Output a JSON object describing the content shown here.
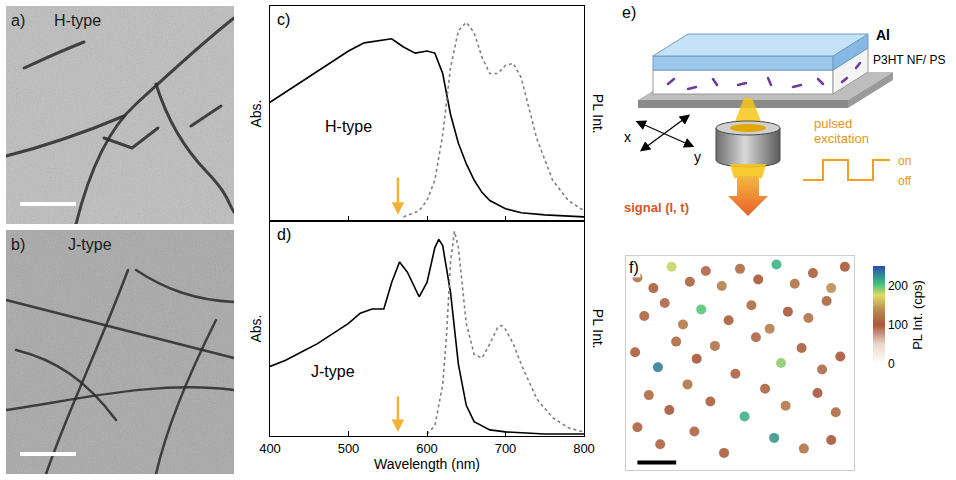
{
  "panels": {
    "a": {
      "label": "a)",
      "text": "H-type"
    },
    "b": {
      "label": "b)",
      "text": "J-type"
    },
    "e": {
      "label": "e)",
      "layer_labels": [
        "Al",
        "P3HT NF/ PS"
      ],
      "axes": [
        "x",
        "y"
      ],
      "excitation": "pulsed excitation",
      "states": [
        "on",
        "off"
      ],
      "signal": "signal (I, t)"
    }
  },
  "chart_data": [
    {
      "panel": "c)",
      "type": "line",
      "label": "H-type",
      "y_title": "Abs.",
      "y2_title": "PL Int.",
      "xlim": [
        400,
        800
      ],
      "xticks": [
        400,
        500,
        600,
        700,
        800
      ],
      "ylim": [
        0,
        1.05
      ],
      "yticks": [],
      "tick_labels": false,
      "grid": false,
      "series": [
        {
          "color": "#000000",
          "line_style": "solid",
          "x": [
            400,
            420,
            440,
            460,
            480,
            500,
            520,
            540,
            555,
            570,
            585,
            600,
            610,
            620,
            630,
            640,
            650,
            660,
            670,
            680,
            700,
            720,
            750,
            800
          ],
          "values": [
            0.58,
            0.63,
            0.68,
            0.73,
            0.78,
            0.83,
            0.87,
            0.88,
            0.89,
            0.85,
            0.82,
            0.83,
            0.82,
            0.72,
            0.52,
            0.38,
            0.28,
            0.2,
            0.14,
            0.1,
            0.06,
            0.04,
            0.03,
            0.02
          ]
        },
        {
          "color": "#808080",
          "line_style": "dot",
          "x": [
            570,
            590,
            600,
            610,
            620,
            630,
            640,
            650,
            660,
            670,
            680,
            690,
            700,
            710,
            720,
            730,
            740,
            760,
            780,
            800
          ],
          "values": [
            0.02,
            0.05,
            0.1,
            0.2,
            0.42,
            0.75,
            0.93,
            0.97,
            0.92,
            0.8,
            0.72,
            0.72,
            0.76,
            0.77,
            0.7,
            0.55,
            0.4,
            0.2,
            0.1,
            0.05
          ]
        }
      ],
      "arrow": {
        "x": 563,
        "y": [
          0.22,
          0.03
        ],
        "color": "#f2b233"
      }
    },
    {
      "panel": "d)",
      "type": "line",
      "label": "J-type",
      "x_title": "Wavelength (nm)",
      "y_title": "Abs.",
      "y2_title": "PL Int.",
      "xlim": [
        400,
        800
      ],
      "xticks": [
        400,
        500,
        600,
        700,
        800
      ],
      "ylim": [
        0,
        1.05
      ],
      "yticks": [],
      "tick_labels": "x",
      "grid": false,
      "series": [
        {
          "color": "#000000",
          "line_style": "solid",
          "x": [
            400,
            420,
            440,
            460,
            480,
            500,
            515,
            530,
            545,
            555,
            565,
            575,
            590,
            600,
            610,
            615,
            620,
            630,
            640,
            650,
            660,
            680,
            700,
            750,
            800
          ],
          "values": [
            0.34,
            0.37,
            0.41,
            0.45,
            0.5,
            0.55,
            0.6,
            0.62,
            0.62,
            0.75,
            0.85,
            0.8,
            0.68,
            0.75,
            0.92,
            0.96,
            0.93,
            0.7,
            0.35,
            0.15,
            0.07,
            0.03,
            0.02,
            0.01,
            0.01
          ]
        },
        {
          "color": "#808080",
          "line_style": "dot",
          "x": [
            600,
            610,
            620,
            625,
            630,
            635,
            640,
            645,
            650,
            660,
            670,
            680,
            690,
            695,
            700,
            710,
            720,
            740,
            760,
            780,
            800
          ],
          "values": [
            0.01,
            0.05,
            0.25,
            0.5,
            0.85,
            1.0,
            0.92,
            0.72,
            0.55,
            0.4,
            0.38,
            0.45,
            0.53,
            0.54,
            0.52,
            0.45,
            0.35,
            0.18,
            0.09,
            0.04,
            0.02
          ]
        }
      ],
      "arrow": {
        "x": 563,
        "y": [
          0.2,
          0.02
        ],
        "color": "#f2b233"
      }
    },
    {
      "panel": "f)",
      "type": "scatter",
      "marker": "circle",
      "xlim": [
        0,
        100
      ],
      "ylim": [
        0,
        100
      ],
      "xticks": [],
      "yticks": [],
      "tick_labels": false,
      "grid": false,
      "x": [
        5,
        12,
        20,
        28,
        35,
        42,
        50,
        58,
        66,
        74,
        82,
        90,
        96,
        8,
        17,
        25,
        33,
        45,
        55,
        63,
        71,
        80,
        88,
        4,
        14,
        22,
        31,
        39,
        48,
        57,
        68,
        77,
        86,
        94,
        10,
        19,
        27,
        37,
        52,
        61,
        70,
        84,
        92,
        15,
        43,
        65,
        30,
        78,
        90,
        5
      ],
      "y": [
        90,
        85,
        95,
        88,
        93,
        86,
        94,
        89,
        96,
        87,
        92,
        85,
        95,
        72,
        78,
        68,
        75,
        70,
        77,
        66,
        74,
        71,
        79,
        55,
        48,
        60,
        52,
        58,
        45,
        62,
        50,
        57,
        47,
        53,
        35,
        28,
        40,
        32,
        25,
        38,
        30,
        36,
        27,
        12,
        8,
        15,
        18,
        10,
        14,
        20
      ],
      "intensity": [
        120,
        105,
        180,
        110,
        95,
        130,
        115,
        100,
        210,
        120,
        105,
        140,
        100,
        110,
        95,
        125,
        200,
        105,
        115,
        130,
        100,
        120,
        110,
        105,
        230,
        115,
        100,
        120,
        110,
        95,
        190,
        105,
        115,
        100,
        115,
        100,
        120,
        105,
        210,
        110,
        125,
        100,
        115,
        110,
        105,
        220,
        95,
        120,
        100,
        110
      ],
      "zlim": [
        0,
        250
      ],
      "zticks": [
        0,
        100,
        200
      ],
      "colorbar_title": "PL Int. (cps)"
    }
  ]
}
